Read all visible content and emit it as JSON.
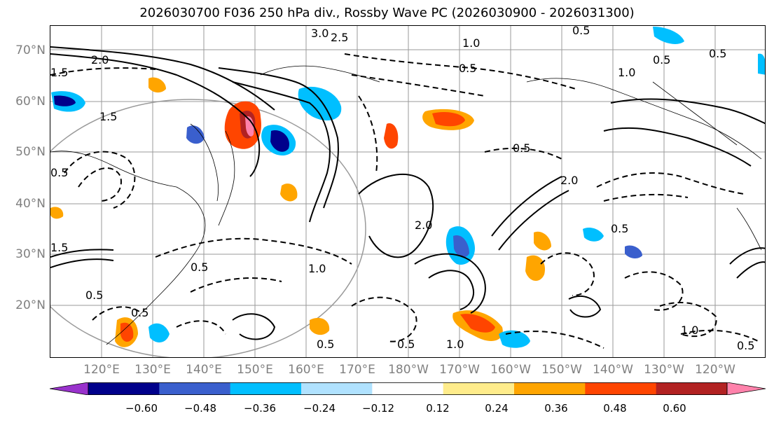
{
  "title": "2026030700 F036 250 hPa div., Rossby Wave PC (2026030900 - 2026031300)",
  "lat_labels": [
    "70°N",
    "60°N",
    "50°N",
    "40°N",
    "30°N",
    "20°N"
  ],
  "lon_labels": [
    "120°E",
    "130°E",
    "140°E",
    "150°E",
    "160°E",
    "170°E",
    "180°W",
    "170°W",
    "160°W",
    "150°W",
    "140°W",
    "130°W",
    "120°W"
  ],
  "colorbar": {
    "colors": [
      "#9932cc",
      "#00008b",
      "#3a5fcd",
      "#00bfff",
      "#b0e2ff",
      "#ffffff",
      "#ffec8b",
      "#ffa500",
      "#ff4500",
      "#b22222",
      "#ff82ab"
    ],
    "tick_labels": [
      "−0.60",
      "−0.48",
      "−0.36",
      "−0.24",
      "−0.12",
      "0.12",
      "0.24",
      "0.36",
      "0.48",
      "0.60"
    ]
  },
  "contour_labels": [
    "3.0",
    "2.5",
    "2.0",
    "1.5",
    "1.0",
    "0.5",
    "0.5",
    "1.0",
    "0.5",
    "1.5",
    "0.5",
    "2.0",
    "0.5",
    "1.0",
    "0.5",
    "0.5",
    "1.5",
    "0.5",
    "0.5",
    "1.0",
    "0.5",
    "0.5",
    "1.0",
    "0.5",
    "2.0",
    "0.5"
  ]
}
